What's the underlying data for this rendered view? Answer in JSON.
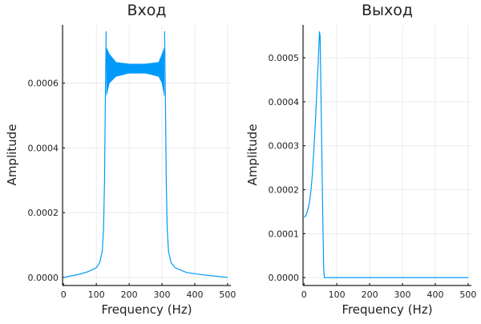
{
  "chart_data": [
    {
      "type": "line",
      "title": "Вход",
      "xlabel": "Frequency (Hz)",
      "ylabel": "Amplitude",
      "xlim": [
        -3,
        510
      ],
      "ylim": [
        -2.5e-05,
        0.00078
      ],
      "xticks": [
        0,
        100,
        200,
        300,
        400,
        500
      ],
      "xtick_labels": [
        "0",
        "100",
        "200",
        "300",
        "400",
        "500"
      ],
      "yticks": [
        0,
        0.0002,
        0.0004,
        0.0006
      ],
      "ytick_labels": [
        "0.0000",
        "0.0002",
        "0.0004",
        "0.0006"
      ],
      "grid": true,
      "color": "#009AFA",
      "x": [
        0,
        25,
        50,
        75,
        100,
        110,
        118,
        122,
        125,
        127,
        129,
        130,
        308,
        309,
        311,
        313,
        316,
        320,
        328,
        340,
        375,
        425,
        500
      ],
      "y": [
        0,
        5e-06,
        1e-05,
        1.8e-05,
        3e-05,
        4.5e-05,
        8e-05,
        0.00015,
        0.0003,
        0.0005,
        0.00068,
        0.00076,
        0.00076,
        0.00068,
        0.0005,
        0.0003,
        0.00015,
        8e-05,
        4.5e-05,
        3e-05,
        1.5e-05,
        8e-06,
        0
      ],
      "oscillation_band": {
        "x": [
          131,
          140,
          160,
          200,
          250,
          290,
          300,
          307
        ],
        "upper": [
          0.00071,
          0.00069,
          0.000665,
          0.00066,
          0.00066,
          0.000665,
          0.00069,
          0.00071
        ],
        "lower": [
          0.00056,
          0.0006,
          0.00062,
          0.00063,
          0.00063,
          0.00062,
          0.0006,
          0.00056
        ]
      }
    },
    {
      "type": "line",
      "title": "Выход",
      "xlabel": "Frequency (Hz)",
      "ylabel": "Amplitude",
      "xlim": [
        -3,
        510
      ],
      "ylim": [
        -1.8e-05,
        0.000575
      ],
      "xticks": [
        0,
        100,
        200,
        300,
        400,
        500
      ],
      "xtick_labels": [
        "0",
        "100",
        "200",
        "300",
        "400",
        "500"
      ],
      "yticks": [
        0,
        0.0001,
        0.0002,
        0.0003,
        0.0004,
        0.0005
      ],
      "ytick_labels": [
        "0.0000",
        "0.0001",
        "0.0002",
        "0.0003",
        "0.0004",
        "0.0005"
      ],
      "grid": true,
      "color": "#009AFA",
      "x": [
        0,
        5,
        10,
        15,
        20,
        25,
        30,
        35,
        40,
        44,
        47,
        49,
        52,
        55,
        58,
        60,
        62,
        500
      ],
      "y": [
        0.000138,
        0.00014,
        0.00015,
        0.000165,
        0.00019,
        0.00023,
        0.00029,
        0.00036,
        0.00044,
        0.0005,
        0.00056,
        0.00055,
        0.0004,
        0.00025,
        0.0001,
        2e-05,
        0,
        0
      ]
    }
  ]
}
